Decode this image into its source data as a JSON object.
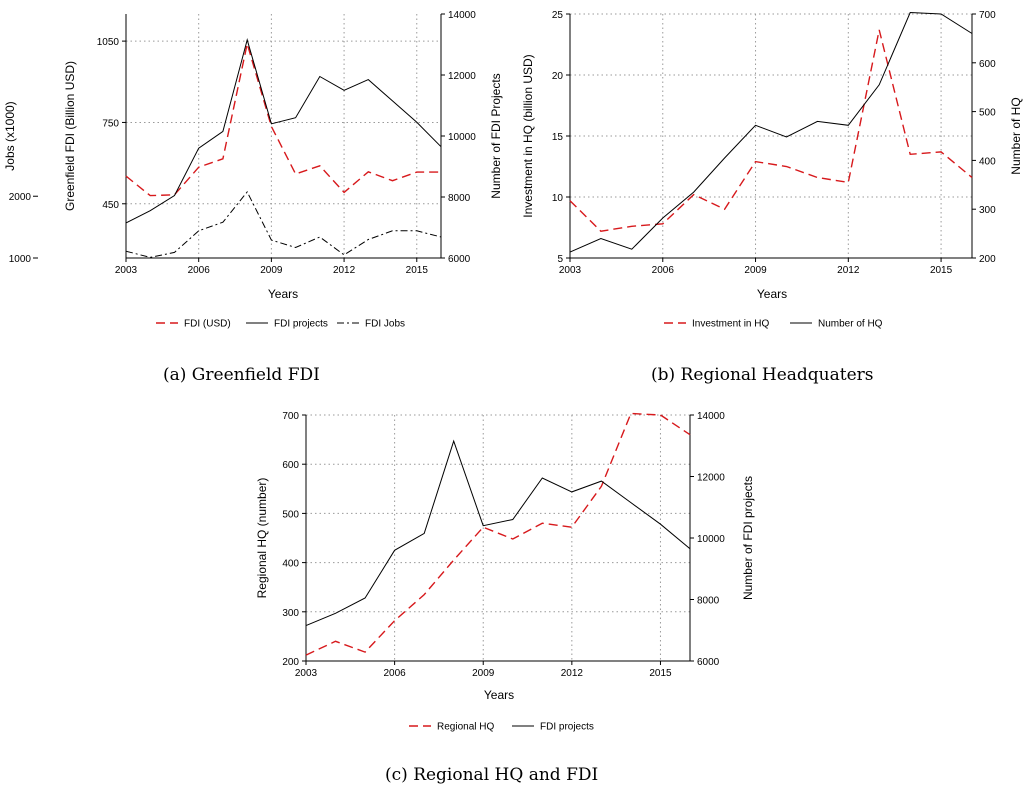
{
  "chart_data": [
    {
      "type": "line",
      "caption": "(a) Greenfield FDI",
      "x": [
        2003,
        2004,
        2005,
        2006,
        2007,
        2008,
        2009,
        2010,
        2011,
        2012,
        2013,
        2014,
        2015,
        2016
      ],
      "xlabel": "Years",
      "xticks": [
        "2003",
        "2006",
        "2009",
        "2012",
        "2015"
      ],
      "axes": {
        "jobs": {
          "label": "Jobs (x1000)",
          "ticks": [
            "1000",
            "2000"
          ]
        },
        "left": {
          "label": "Greenfield FDI (Billion USD)",
          "ticks": [
            "450",
            "750",
            "1050"
          ]
        },
        "right": {
          "label": "Number of FDI Projects",
          "ticks": [
            "6000",
            "8000",
            "10000",
            "12000",
            "14000"
          ]
        }
      },
      "series": [
        {
          "name": "FDI (USD)",
          "axis": "left",
          "style": "dashed-red",
          "values": [
            552,
            480,
            483,
            585,
            616,
            1040,
            735,
            560,
            590,
            492,
            568,
            535,
            567,
            567
          ]
        },
        {
          "name": "FDI projects",
          "axis": "right",
          "style": "solid-black",
          "values": [
            7150,
            7550,
            8050,
            9600,
            10150,
            13150,
            10400,
            10600,
            11950,
            11500,
            11850,
            11150,
            10450,
            9650
          ]
        },
        {
          "name": "FDI Jobs",
          "axis": "jobs",
          "style": "dashdot-black",
          "values": [
            1110,
            1010,
            1090,
            1440,
            1580,
            2070,
            1290,
            1170,
            1340,
            1050,
            1300,
            1440,
            1440,
            1340
          ]
        }
      ],
      "legend_position": "bottom"
    },
    {
      "type": "line",
      "caption": "(b) Regional Headquaters",
      "x": [
        2003,
        2004,
        2005,
        2006,
        2007,
        2008,
        2009,
        2010,
        2011,
        2012,
        2013,
        2014,
        2015,
        2016
      ],
      "xlabel": "Years",
      "xticks": [
        "2003",
        "2006",
        "2009",
        "2012",
        "2015"
      ],
      "axes": {
        "left": {
          "label": "Investment in HQ (billion USD)",
          "ticks": [
            "5",
            "10",
            "15",
            "20",
            "25"
          ]
        },
        "right": {
          "label": "Number of HQ",
          "ticks": [
            "200",
            "300",
            "400",
            "500",
            "600",
            "700"
          ]
        }
      },
      "series": [
        {
          "name": "Investment in HQ",
          "axis": "left",
          "style": "dashed-red",
          "values": [
            9.7,
            7.2,
            7.6,
            7.8,
            10.2,
            9.0,
            12.9,
            12.5,
            11.6,
            11.2,
            23.7,
            13.5,
            13.7,
            11.6
          ]
        },
        {
          "name": "Number of HQ",
          "axis": "right",
          "style": "solid-black",
          "values": [
            212,
            240,
            218,
            282,
            335,
            405,
            472,
            448,
            480,
            472,
            555,
            703,
            700,
            660
          ]
        }
      ],
      "legend_position": "bottom"
    },
    {
      "type": "line",
      "caption": "(c) Regional HQ and FDI",
      "x": [
        2003,
        2004,
        2005,
        2006,
        2007,
        2008,
        2009,
        2010,
        2011,
        2012,
        2013,
        2014,
        2015,
        2016
      ],
      "xlabel": "Years",
      "xticks": [
        "2003",
        "2006",
        "2009",
        "2012",
        "2015"
      ],
      "axes": {
        "left": {
          "label": "Regional HQ (number)",
          "ticks": [
            "200",
            "300",
            "400",
            "500",
            "600",
            "700"
          ]
        },
        "right": {
          "label": "Number of FDI projects",
          "ticks": [
            "6000",
            "8000",
            "10000",
            "12000",
            "14000"
          ]
        }
      },
      "series": [
        {
          "name": "Regional HQ",
          "axis": "left",
          "style": "dashed-red",
          "values": [
            212,
            240,
            218,
            282,
            335,
            405,
            472,
            448,
            480,
            472,
            555,
            703,
            700,
            660
          ]
        },
        {
          "name": "FDI projects",
          "axis": "right",
          "style": "solid-black",
          "values": [
            7150,
            7550,
            8050,
            9600,
            10150,
            13150,
            10400,
            10600,
            11950,
            11500,
            11850,
            11150,
            10450,
            9650
          ]
        }
      ],
      "legend_position": "bottom"
    }
  ],
  "colors": {
    "dashed-red": "#d7191c",
    "solid-black": "#000000",
    "dashdot-black": "#000000",
    "grid": "#9a9a9a"
  }
}
